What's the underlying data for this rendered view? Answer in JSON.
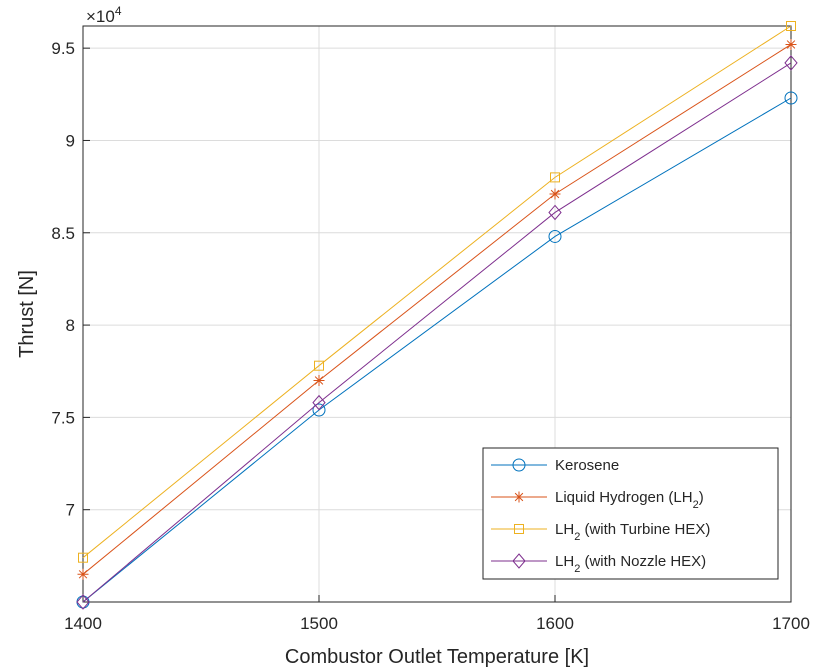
{
  "chart_data": {
    "type": "line",
    "xlabel": "Combustor Outlet Temperature [K]",
    "ylabel": "Thrust [N]",
    "exponent_label": {
      "base": "×10",
      "power": "4"
    },
    "x": [
      1400,
      1500,
      1600,
      1700
    ],
    "xlim": [
      1400,
      1700
    ],
    "ylim": [
      6.5,
      9.62
    ],
    "xticks": [
      "1400",
      "1500",
      "1600",
      "1700"
    ],
    "yticks": [
      "7",
      "7.5",
      "8",
      "8.5",
      "9",
      "9.5"
    ],
    "grid": true,
    "legend_position": "bottom-right",
    "series": [
      {
        "name": "Kerosene",
        "marker": "circle",
        "color": "#0072BD",
        "values": [
          6.5,
          7.54,
          8.48,
          9.23
        ]
      },
      {
        "name": "Liquid Hydrogen (LH",
        "name_sub": "2",
        "name_suffix": ")",
        "marker": "asterisk",
        "color": "#D95319",
        "values": [
          6.65,
          7.7,
          8.71,
          9.52
        ]
      },
      {
        "name": "LH",
        "name_sub": "2",
        "name_suffix": " (with Turbine HEX)",
        "marker": "square",
        "color": "#EDB120",
        "values": [
          6.74,
          7.78,
          8.8,
          9.62
        ]
      },
      {
        "name": "LH",
        "name_sub": "2",
        "name_suffix": " (with Nozzle HEX)",
        "marker": "diamond",
        "color": "#7E2F8E",
        "values": [
          6.5,
          7.58,
          8.61,
          9.42
        ]
      }
    ]
  }
}
